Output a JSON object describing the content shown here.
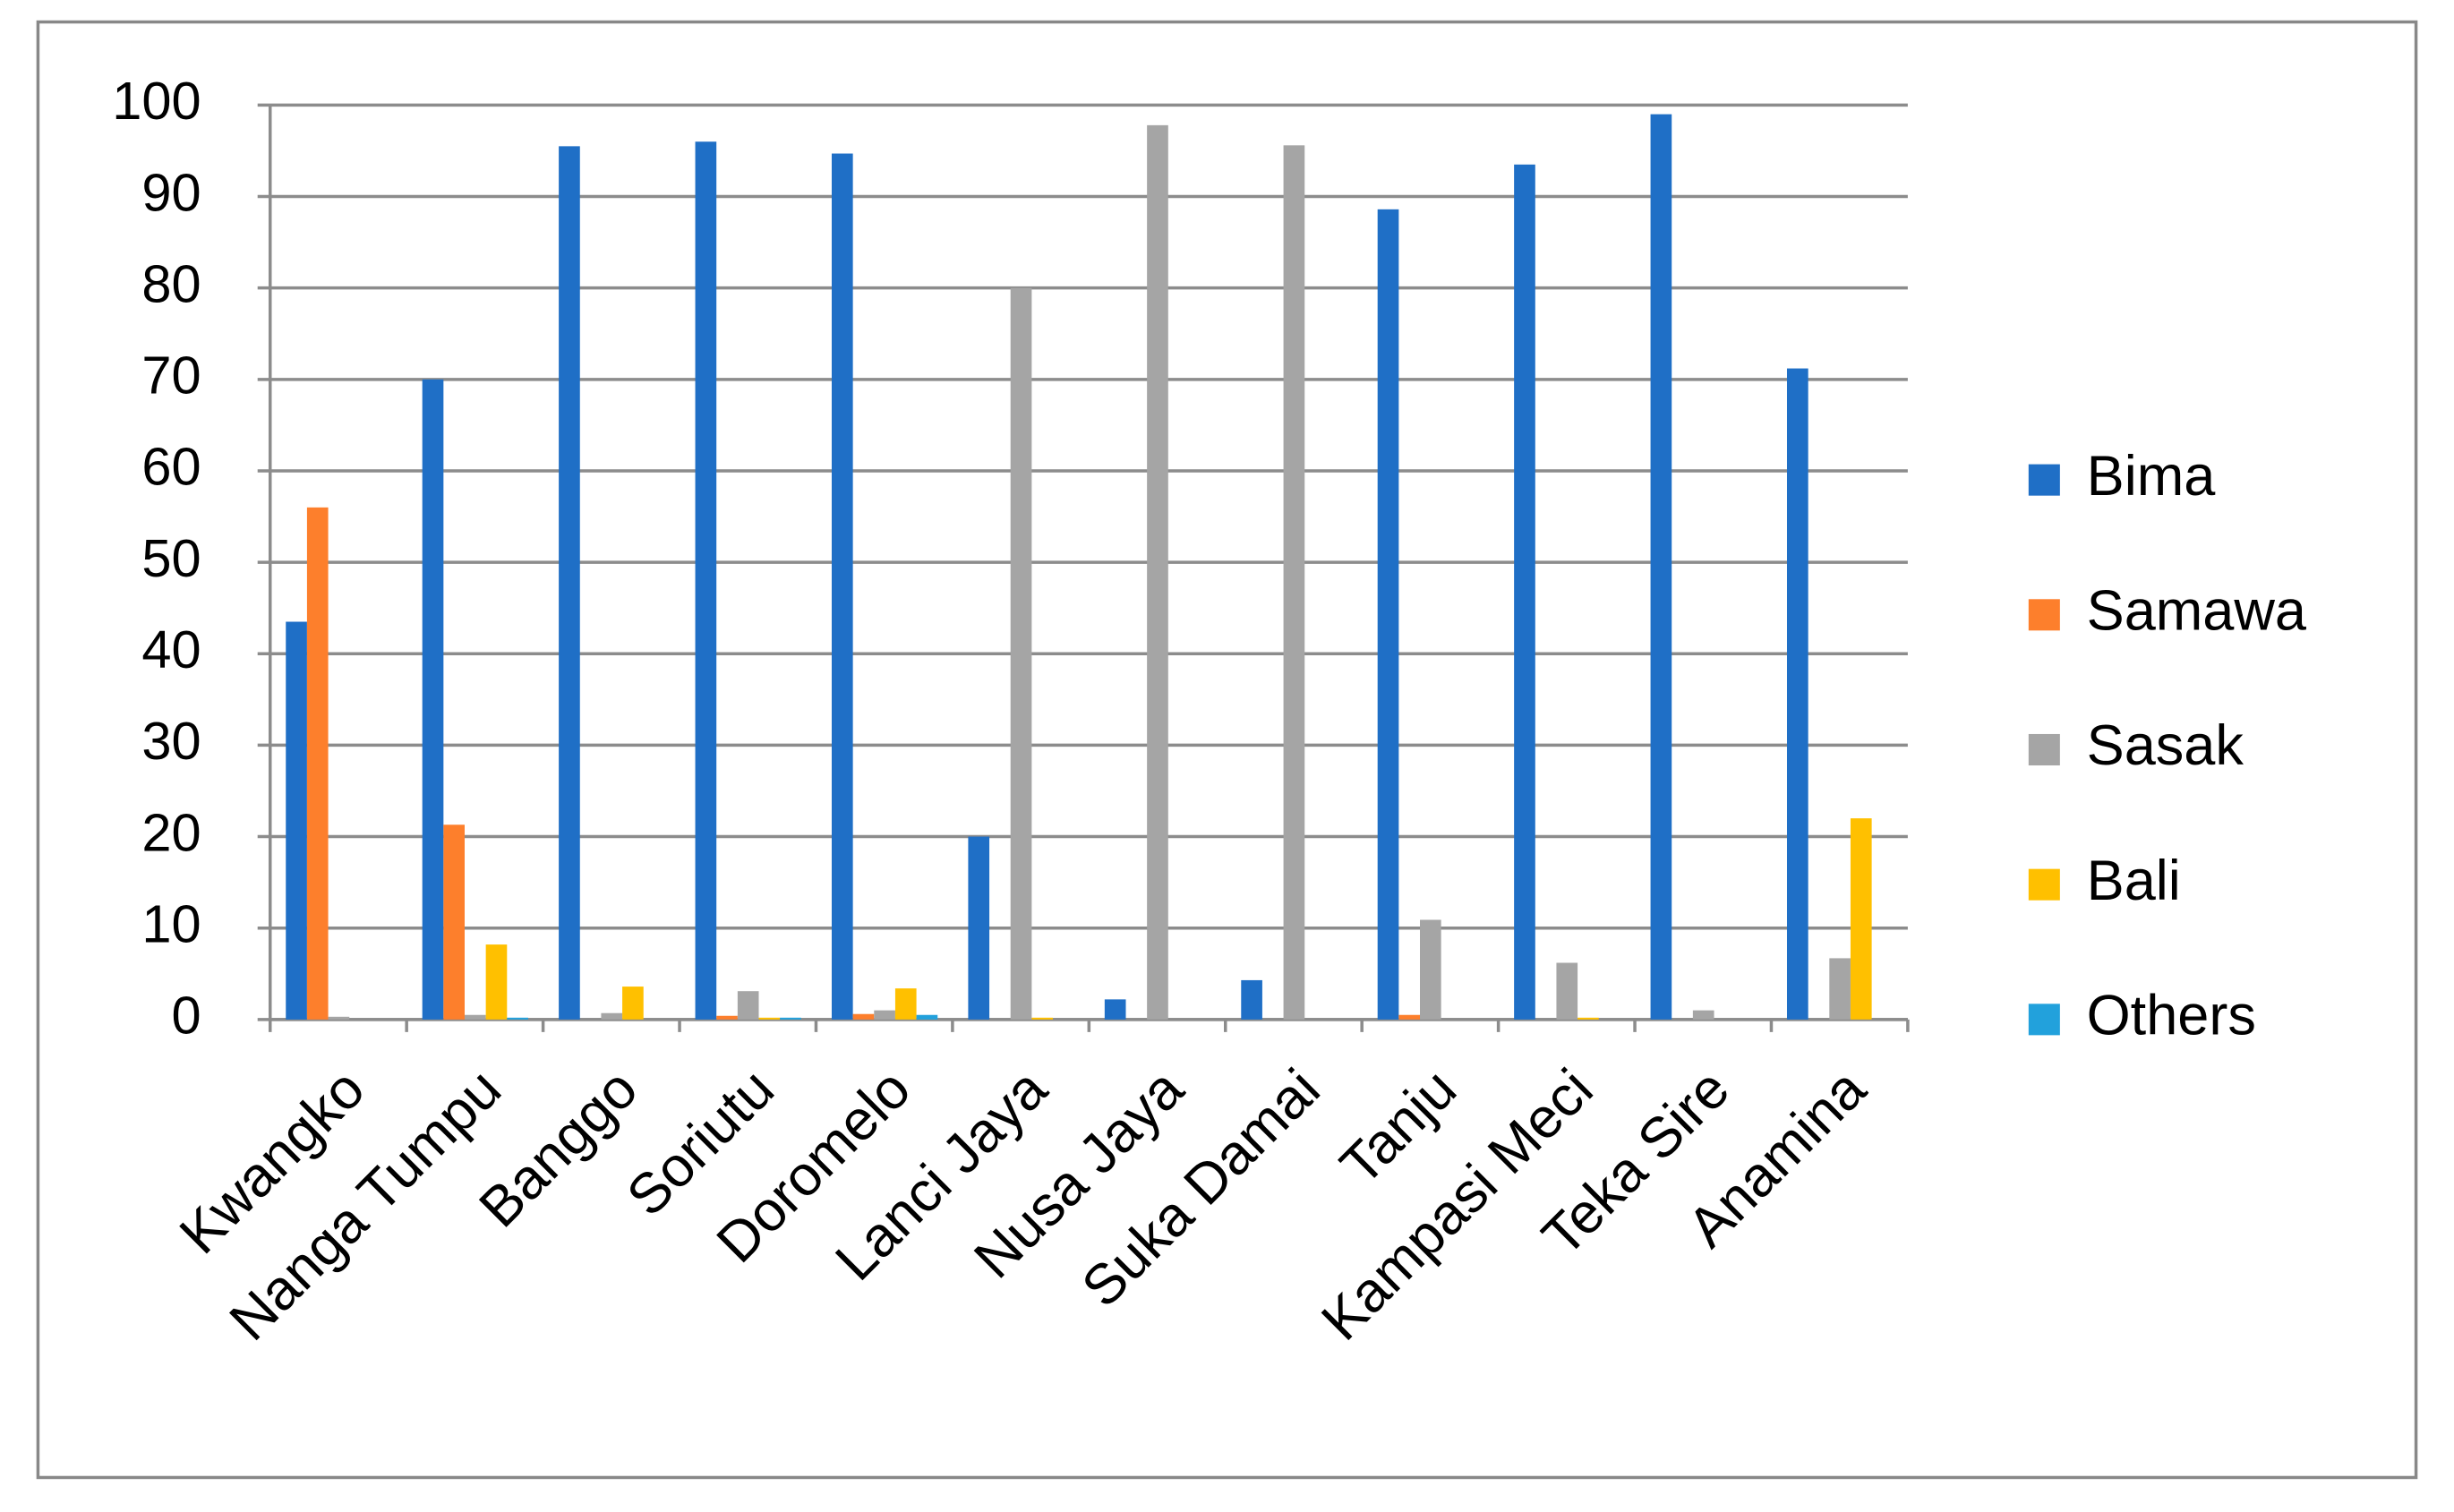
{
  "chart_data": {
    "type": "bar",
    "categories": [
      "Kwangko",
      "Nanga Tumpu",
      "Banggo",
      "Soriutu",
      "Doromelo",
      "Lanci Jaya",
      "Nusa Jaya",
      "Suka Damai",
      "Tanju",
      "Kampasi Meci",
      "Teka Sire",
      "Anamina"
    ],
    "series": [
      {
        "name": "Bima",
        "color": "#1f6fc6",
        "values": [
          43.5,
          70,
          95.5,
          96,
          94.7,
          20,
          2.2,
          4.3,
          88.6,
          93.5,
          99,
          71.2
        ]
      },
      {
        "name": "Samawa",
        "color": "#fd7f2c",
        "values": [
          56,
          21.3,
          0,
          0.4,
          0.6,
          0,
          0,
          0,
          0.5,
          0,
          0,
          0
        ]
      },
      {
        "name": "Sasak",
        "color": "#a5a5a5",
        "values": [
          0.3,
          0.5,
          0.7,
          3.1,
          1,
          80,
          97.8,
          95.6,
          10.9,
          6.2,
          1,
          6.7
        ]
      },
      {
        "name": "Bali",
        "color": "#ffc000",
        "values": [
          0,
          8.2,
          3.6,
          0.2,
          3.4,
          0.2,
          0,
          0,
          0,
          0.2,
          0,
          22
        ]
      },
      {
        "name": "Others",
        "color": "#22a1dc",
        "values": [
          0,
          0.2,
          0,
          0.2,
          0.5,
          0,
          0,
          0,
          0,
          0,
          0,
          0
        ]
      }
    ],
    "ylim": [
      0,
      100
    ],
    "yticks": [
      0,
      10,
      20,
      30,
      40,
      50,
      60,
      70,
      80,
      90,
      100
    ],
    "grid": true,
    "legend": "right"
  }
}
